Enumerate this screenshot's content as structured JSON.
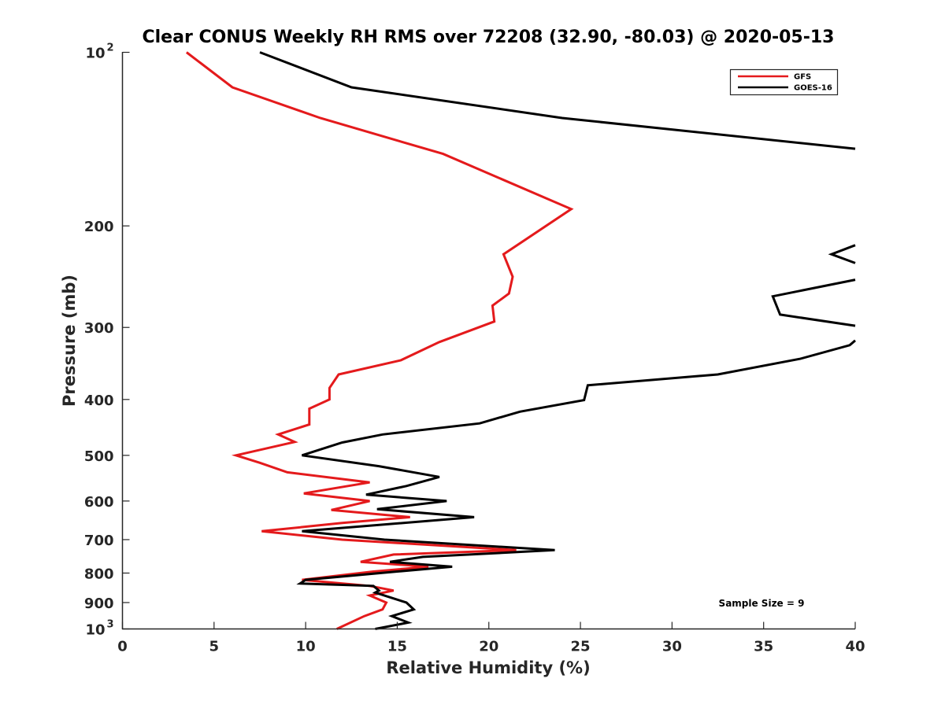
{
  "chart_data": {
    "type": "line",
    "title": "Clear CONUS Weekly RH RMS over 72208 (32.90, -80.03) @ 2020-05-13",
    "xlabel": "Relative Humidity (%)",
    "ylabel": "Pressure (mb)",
    "xlim": [
      0,
      40
    ],
    "ylim": [
      100,
      1000
    ],
    "y_scale": "log",
    "y_reversed": true,
    "grid": false,
    "legend_position": "top-right",
    "x_ticks": [
      0,
      5,
      10,
      15,
      20,
      25,
      30,
      35,
      40
    ],
    "y_ticks": [
      {
        "value": 100,
        "base": "10",
        "exp": "2"
      },
      {
        "value": 200,
        "label": "200"
      },
      {
        "value": 300,
        "label": "300"
      },
      {
        "value": 400,
        "label": "400"
      },
      {
        "value": 500,
        "label": "500"
      },
      {
        "value": 600,
        "label": "600"
      },
      {
        "value": 700,
        "label": "700"
      },
      {
        "value": 800,
        "label": "800"
      },
      {
        "value": 900,
        "label": "900"
      },
      {
        "value": 1000,
        "base": "10",
        "exp": "3"
      }
    ],
    "annotation": "Sample Size = 9",
    "series": [
      {
        "name": "GFS",
        "color": "#e41a1c",
        "points": [
          [
            3.5,
            100
          ],
          [
            6.0,
            115
          ],
          [
            10.8,
            130
          ],
          [
            17.5,
            150
          ],
          [
            24.5,
            187
          ],
          [
            20.8,
            224
          ],
          [
            21.3,
            245
          ],
          [
            21.1,
            262
          ],
          [
            20.2,
            275
          ],
          [
            20.3,
            293
          ],
          [
            17.3,
            318
          ],
          [
            15.2,
            342
          ],
          [
            11.8,
            362
          ],
          [
            11.3,
            382
          ],
          [
            11.3,
            400
          ],
          [
            10.2,
            415
          ],
          [
            10.2,
            442
          ],
          [
            8.5,
            460
          ],
          [
            9.4,
            474
          ],
          [
            6.2,
            500
          ],
          [
            7.5,
            515
          ],
          [
            9.0,
            535
          ],
          [
            13.5,
            557
          ],
          [
            9.9,
            582
          ],
          [
            13.5,
            600
          ],
          [
            11.4,
            622
          ],
          [
            15.7,
            640
          ],
          [
            12.0,
            655
          ],
          [
            7.6,
            677
          ],
          [
            12.0,
            700
          ],
          [
            21.5,
            730
          ],
          [
            14.8,
            743
          ],
          [
            13.0,
            765
          ],
          [
            16.7,
            780
          ],
          [
            13.7,
            795
          ],
          [
            9.8,
            822
          ],
          [
            13.5,
            842
          ],
          [
            14.8,
            858
          ],
          [
            13.5,
            875
          ],
          [
            14.4,
            900
          ],
          [
            14.2,
            925
          ],
          [
            13.2,
            950
          ],
          [
            11.7,
            1000
          ]
        ]
      },
      {
        "name": "GOES-16",
        "color": "#000000",
        "points": [
          [
            7.5,
            100
          ],
          [
            12.5,
            115
          ],
          [
            24.0,
            130
          ],
          [
            40.0,
            147
          ],
          [
            null,
            215
          ],
          [
            40.0,
            216
          ],
          [
            38.7,
            224
          ],
          [
            40.0,
            232
          ],
          [
            null,
            247
          ],
          [
            40.0,
            248
          ],
          [
            35.5,
            265
          ],
          [
            35.9,
            285
          ],
          [
            40.0,
            298
          ],
          [
            null,
            315
          ],
          [
            40.0,
            316
          ],
          [
            39.7,
            322
          ],
          [
            37.0,
            340
          ],
          [
            32.5,
            362
          ],
          [
            25.4,
            378
          ],
          [
            25.2,
            401
          ],
          [
            21.7,
            420
          ],
          [
            19.5,
            440
          ],
          [
            14.2,
            460
          ],
          [
            12.0,
            475
          ],
          [
            9.8,
            500
          ],
          [
            14.0,
            522
          ],
          [
            17.3,
            545
          ],
          [
            15.5,
            565
          ],
          [
            13.3,
            585
          ],
          [
            17.7,
            600
          ],
          [
            13.9,
            620
          ],
          [
            19.2,
            640
          ],
          [
            9.8,
            677
          ],
          [
            14.3,
            700
          ],
          [
            23.6,
            730
          ],
          [
            16.4,
            750
          ],
          [
            14.6,
            765
          ],
          [
            18.0,
            780
          ],
          [
            15.0,
            795
          ],
          [
            10.0,
            822
          ],
          [
            9.7,
            834
          ],
          [
            13.7,
            842
          ],
          [
            14.0,
            858
          ],
          [
            13.8,
            865
          ],
          [
            15.5,
            900
          ],
          [
            15.9,
            925
          ],
          [
            14.7,
            950
          ],
          [
            15.6,
            975
          ],
          [
            13.8,
            1000
          ]
        ]
      }
    ]
  }
}
